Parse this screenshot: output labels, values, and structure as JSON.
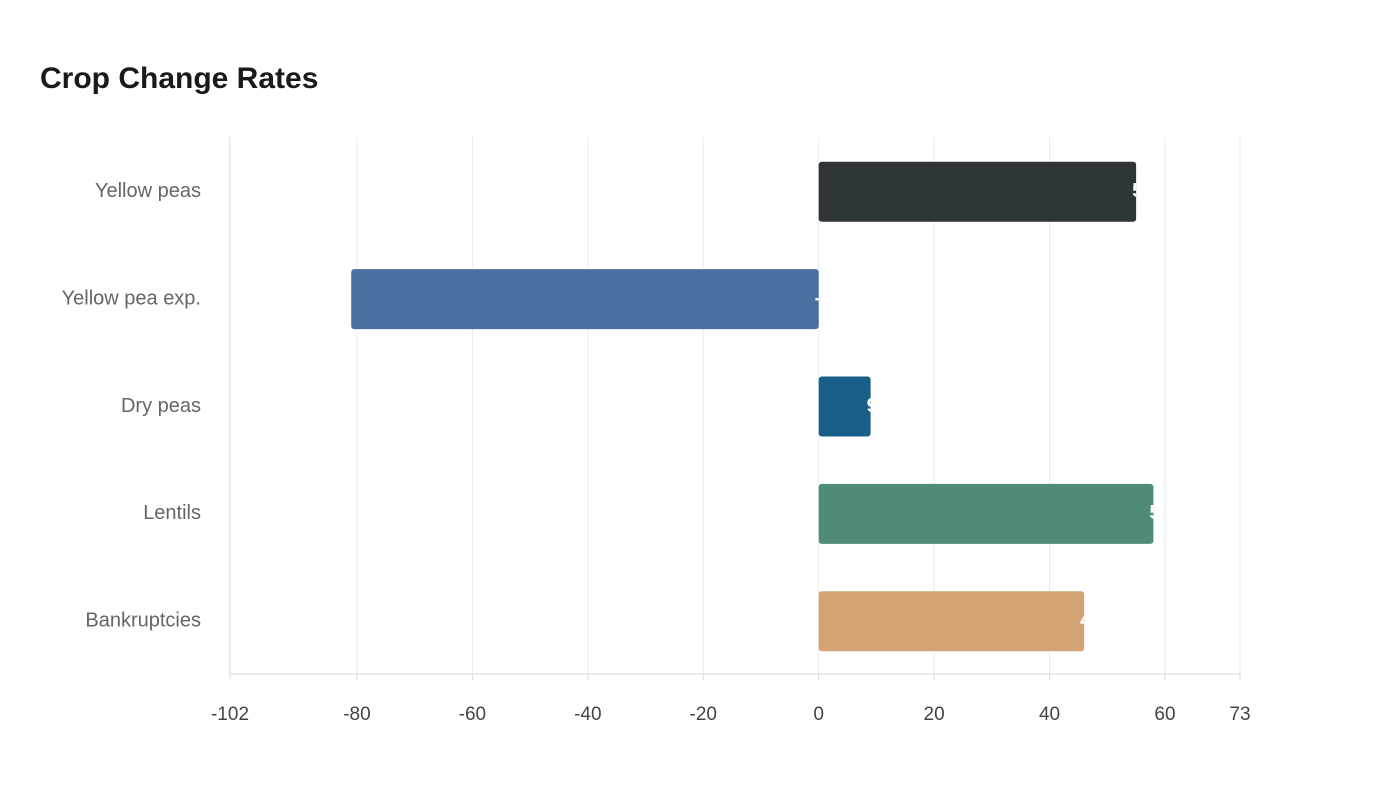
{
  "chart_data": {
    "type": "hbar",
    "title": "Crop Change Rates",
    "categories": [
      "Yellow peas",
      "Yellow pea exp.",
      "Dry peas",
      "Lentils",
      "Bankruptcies"
    ],
    "values": [
      55,
      -81,
      9,
      58,
      46
    ],
    "colors": [
      "#2e3538",
      "#4a6fa1",
      "#1a5f87",
      "#4f8c7a",
      "#d4a373"
    ],
    "xlim": [
      -102,
      73
    ],
    "xticks": [
      -102,
      -80,
      -60,
      -40,
      -20,
      0,
      20,
      40,
      60,
      73
    ],
    "grid": true
  }
}
